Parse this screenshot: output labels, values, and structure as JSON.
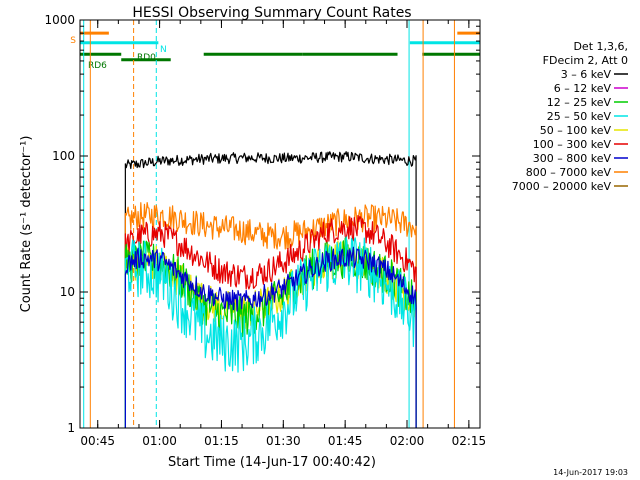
{
  "chart_data": {
    "type": "line",
    "title": "HESSI Observing Summary Count Rates",
    "xlabel": "Start Time (14-Jun-17 00:40:42)",
    "ylabel": "Count Rate (s⁻¹ detector⁻¹)",
    "yscale": "log",
    "ylim": [
      1,
      1000
    ],
    "y_ticks": [
      "1",
      "10",
      "100",
      "1000"
    ],
    "xlim_minutes": [
      0.0,
      97.0
    ],
    "x_ticks": [
      {
        "label": "00:45",
        "t": 4.3
      },
      {
        "label": "01:00",
        "t": 19.3
      },
      {
        "label": "01:15",
        "t": 34.3
      },
      {
        "label": "01:30",
        "t": 49.3
      },
      {
        "label": "01:45",
        "t": 64.3
      },
      {
        "label": "02:00",
        "t": 79.3
      },
      {
        "label": "02:15",
        "t": 94.3
      }
    ],
    "legend": {
      "placement": "right",
      "header": [
        "Det 1,3,6,",
        "FDecim 2, Att 0"
      ],
      "entries": [
        {
          "label": "3 – 6 keV",
          "color": "#000000"
        },
        {
          "label": "6 – 12 keV",
          "color": "#cc00cc"
        },
        {
          "label": "12 – 25 keV",
          "color": "#00cc00"
        },
        {
          "label": "25 – 50 keV",
          "color": "#00e5e5"
        },
        {
          "label": "50 – 100 keV",
          "color": "#e5e500"
        },
        {
          "label": "100 – 300 keV",
          "color": "#e50000"
        },
        {
          "label": "300 – 800 keV",
          "color": "#0000cc"
        },
        {
          "label": "800 – 7000 keV",
          "color": "#ff8000"
        },
        {
          "label": "7000 – 20000 keV",
          "color": "#996600"
        }
      ]
    },
    "series": [
      {
        "name": "3 – 6 keV",
        "color": "#000000",
        "noise": 0.04,
        "points": [
          [
            11.0,
            85
          ],
          [
            15,
            88
          ],
          [
            20,
            92
          ],
          [
            30,
            95
          ],
          [
            40,
            97
          ],
          [
            50,
            96
          ],
          [
            60,
            98
          ],
          [
            65,
            99
          ],
          [
            70,
            96
          ],
          [
            78,
            93
          ],
          [
            81.5,
            92
          ]
        ]
      },
      {
        "name": "800 – 7000 keV",
        "color": "#ff8000",
        "noise": 0.1,
        "points": [
          [
            11.0,
            33
          ],
          [
            14,
            36
          ],
          [
            20,
            37
          ],
          [
            25,
            34
          ],
          [
            30,
            31
          ],
          [
            40,
            28
          ],
          [
            45,
            26
          ],
          [
            50,
            26
          ],
          [
            55,
            28
          ],
          [
            60,
            31
          ],
          [
            65,
            34
          ],
          [
            70,
            35
          ],
          [
            75,
            34
          ],
          [
            80,
            31
          ],
          [
            81.5,
            30
          ]
        ]
      },
      {
        "name": "100 – 300 keV",
        "color": "#e50000",
        "noise": 0.1,
        "points": [
          [
            11.0,
            22
          ],
          [
            15,
            26
          ],
          [
            20,
            27
          ],
          [
            25,
            22
          ],
          [
            30,
            17
          ],
          [
            35,
            14
          ],
          [
            40,
            13
          ],
          [
            45,
            14
          ],
          [
            50,
            17
          ],
          [
            55,
            22
          ],
          [
            60,
            28
          ],
          [
            65,
            30
          ],
          [
            70,
            28
          ],
          [
            75,
            22
          ],
          [
            80,
            16
          ],
          [
            81.5,
            14
          ]
        ]
      },
      {
        "name": "50 – 100 keV",
        "color": "#e5e500",
        "noise": 0.14,
        "points": [
          [
            11.0,
            16
          ],
          [
            15,
            17
          ],
          [
            20,
            16
          ],
          [
            25,
            12
          ],
          [
            30,
            8.5
          ],
          [
            35,
            7.5
          ],
          [
            40,
            7.2
          ],
          [
            45,
            8
          ],
          [
            50,
            10
          ],
          [
            55,
            14
          ],
          [
            60,
            17
          ],
          [
            65,
            18
          ],
          [
            70,
            16
          ],
          [
            75,
            13
          ],
          [
            80,
            9
          ],
          [
            81.5,
            8
          ]
        ]
      },
      {
        "name": "12 – 25 keV",
        "color": "#00cc00",
        "noise": 0.15,
        "points": [
          [
            11.0,
            16
          ],
          [
            15,
            17
          ],
          [
            20,
            16
          ],
          [
            25,
            12
          ],
          [
            30,
            8
          ],
          [
            35,
            6.8
          ],
          [
            40,
            6.5
          ],
          [
            45,
            7.5
          ],
          [
            50,
            10
          ],
          [
            55,
            14
          ],
          [
            60,
            17
          ],
          [
            65,
            18
          ],
          [
            70,
            16
          ],
          [
            75,
            13
          ],
          [
            80,
            9
          ],
          [
            81.5,
            8
          ]
        ]
      },
      {
        "name": "25 – 50 keV",
        "color": "#00e5e5",
        "noise": 0.22,
        "points": [
          [
            11.0,
            15
          ],
          [
            15,
            15
          ],
          [
            20,
            13
          ],
          [
            25,
            8
          ],
          [
            30,
            5
          ],
          [
            35,
            4.2
          ],
          [
            40,
            4.2
          ],
          [
            45,
            5.5
          ],
          [
            50,
            8
          ],
          [
            55,
            12
          ],
          [
            60,
            16
          ],
          [
            65,
            17
          ],
          [
            70,
            15
          ],
          [
            75,
            11
          ],
          [
            80,
            7
          ],
          [
            81.5,
            6
          ]
        ]
      },
      {
        "name": "300 – 800 keV",
        "color": "#0000cc",
        "noise": 0.08,
        "points": [
          [
            11.0,
            16
          ],
          [
            15,
            18
          ],
          [
            20,
            17
          ],
          [
            25,
            13
          ],
          [
            30,
            10
          ],
          [
            35,
            8.8
          ],
          [
            40,
            8.5
          ],
          [
            45,
            9.5
          ],
          [
            50,
            11
          ],
          [
            55,
            14
          ],
          [
            60,
            17
          ],
          [
            65,
            18
          ],
          [
            70,
            17
          ],
          [
            75,
            14
          ],
          [
            80,
            10
          ],
          [
            81.5,
            9
          ]
        ]
      }
    ],
    "observing_bars": [
      {
        "label": "S",
        "color": "#ff8000",
        "value": 800,
        "spans": [
          [
            0,
            7
          ],
          [
            91.5,
            97
          ]
        ]
      },
      {
        "label": "N",
        "color": "#00e5e5",
        "value": 680,
        "spans": [
          [
            0,
            19
          ],
          [
            80,
            97
          ]
        ]
      },
      {
        "label": "RD0",
        "color": "#007700",
        "value": 560,
        "spans": [
          [
            0,
            10
          ],
          [
            30,
            54
          ],
          [
            54,
            77
          ],
          [
            83,
            97
          ]
        ]
      },
      {
        "label": "RD6",
        "color": "#007700",
        "value": 510,
        "spans": [
          [
            10,
            22
          ]
        ]
      }
    ],
    "vertical_markers": [
      {
        "t": 0.9,
        "color": "#00e5e5",
        "style": "solid"
      },
      {
        "t": 2.5,
        "color": "#ff8000",
        "style": "solid"
      },
      {
        "t": 13.0,
        "color": "#ff8000",
        "style": "dashed"
      },
      {
        "t": 18.5,
        "color": "#00e5e5",
        "style": "dashed"
      },
      {
        "t": 79.8,
        "color": "#00e5e5",
        "style": "solid"
      },
      {
        "t": 83.2,
        "color": "#ff8000",
        "style": "solid"
      },
      {
        "t": 90.8,
        "color": "#ff8000",
        "style": "solid"
      },
      {
        "t": 97.0,
        "color": "#00e5e5",
        "style": "dashed"
      }
    ]
  },
  "footer": {
    "timestamp": "14-Jun-2017 19:03"
  }
}
